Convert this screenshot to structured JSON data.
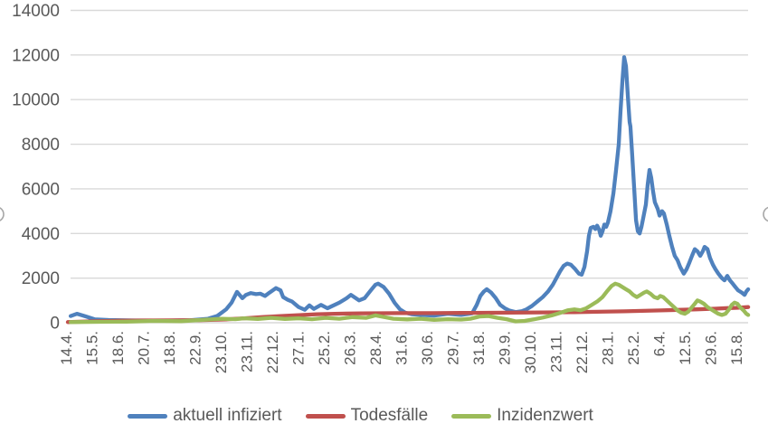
{
  "chart_data": {
    "type": "line",
    "title": "",
    "grid": true,
    "legend_position": "bottom",
    "y_axis": {
      "range": [
        0,
        14000
      ],
      "ticks": [
        0,
        2000,
        4000,
        6000,
        8000,
        10000,
        12000,
        14000
      ]
    },
    "x_axis": {
      "tick_labels": [
        "14.4.",
        "15.5.",
        "18.6.",
        "20.7.",
        "18.8.",
        "22.9.",
        "23.10.",
        "23.11.",
        "22.12.",
        "27.1.",
        "25.2.",
        "26.3.",
        "28.4.",
        "31.6.",
        "30.6.",
        "29.7.",
        "31.8.",
        "29.9.",
        "30.10.",
        "23.11.",
        "22.12.",
        "28.1.",
        "25.2.",
        "6.4.",
        "12.5.",
        "29.6.",
        "15.8."
      ]
    },
    "legend": [
      {
        "label": "aktuell infiziert",
        "color": "#4F81BD"
      },
      {
        "label": "Todesfälle",
        "color": "#C0504D"
      },
      {
        "label": "Inzidenzwert",
        "color": "#9BBB59"
      }
    ],
    "series": [
      {
        "name": "aktuell infiziert",
        "color": "#4F81BD",
        "points": [
          [
            0.18,
            300
          ],
          [
            0.42,
            400
          ],
          [
            0.77,
            280
          ],
          [
            1.12,
            150
          ],
          [
            1.65,
            120
          ],
          [
            2.7,
            100
          ],
          [
            3.75,
            90
          ],
          [
            4.81,
            110
          ],
          [
            5.51,
            180
          ],
          [
            5.86,
            300
          ],
          [
            6.21,
            600
          ],
          [
            6.42,
            900
          ],
          [
            6.63,
            1380
          ],
          [
            6.84,
            1100
          ],
          [
            6.98,
            1250
          ],
          [
            7.16,
            1330
          ],
          [
            7.37,
            1280
          ],
          [
            7.54,
            1300
          ],
          [
            7.72,
            1200
          ],
          [
            7.89,
            1350
          ],
          [
            8.14,
            1550
          ],
          [
            8.32,
            1450
          ],
          [
            8.42,
            1150
          ],
          [
            8.6,
            1030
          ],
          [
            8.77,
            950
          ],
          [
            9.02,
            700
          ],
          [
            9.26,
            580
          ],
          [
            9.44,
            780
          ],
          [
            9.61,
            620
          ],
          [
            9.89,
            800
          ],
          [
            10.14,
            650
          ],
          [
            10.6,
            900
          ],
          [
            10.88,
            1100
          ],
          [
            11.05,
            1250
          ],
          [
            11.37,
            1000
          ],
          [
            11.58,
            1100
          ],
          [
            11.82,
            1450
          ],
          [
            12.0,
            1700
          ],
          [
            12.11,
            1750
          ],
          [
            12.32,
            1600
          ],
          [
            12.53,
            1300
          ],
          [
            12.74,
            900
          ],
          [
            12.95,
            600
          ],
          [
            13.16,
            450
          ],
          [
            13.4,
            380
          ],
          [
            13.75,
            350
          ],
          [
            14.28,
            320
          ],
          [
            14.81,
            400
          ],
          [
            15.33,
            350
          ],
          [
            15.75,
            420
          ],
          [
            15.93,
            800
          ],
          [
            16.07,
            1200
          ],
          [
            16.21,
            1400
          ],
          [
            16.32,
            1500
          ],
          [
            16.49,
            1350
          ],
          [
            16.67,
            1100
          ],
          [
            16.84,
            800
          ],
          [
            17.02,
            650
          ],
          [
            17.19,
            550
          ],
          [
            17.44,
            480
          ],
          [
            17.68,
            520
          ],
          [
            17.86,
            600
          ],
          [
            18.07,
            750
          ],
          [
            18.28,
            950
          ],
          [
            18.49,
            1150
          ],
          [
            18.7,
            1400
          ],
          [
            18.88,
            1700
          ],
          [
            19.02,
            2000
          ],
          [
            19.16,
            2300
          ],
          [
            19.3,
            2550
          ],
          [
            19.44,
            2650
          ],
          [
            19.58,
            2600
          ],
          [
            19.75,
            2400
          ],
          [
            19.89,
            2200
          ],
          [
            20.0,
            2150
          ],
          [
            20.11,
            2500
          ],
          [
            20.21,
            3200
          ],
          [
            20.28,
            3900
          ],
          [
            20.35,
            4250
          ],
          [
            20.46,
            4300
          ],
          [
            20.53,
            4200
          ],
          [
            20.6,
            4350
          ],
          [
            20.67,
            4200
          ],
          [
            20.74,
            3900
          ],
          [
            20.81,
            4100
          ],
          [
            20.88,
            4400
          ],
          [
            20.95,
            4300
          ],
          [
            21.02,
            4500
          ],
          [
            21.12,
            5000
          ],
          [
            21.23,
            5800
          ],
          [
            21.33,
            6800
          ],
          [
            21.44,
            8000
          ],
          [
            21.51,
            9500
          ],
          [
            21.58,
            10800
          ],
          [
            21.65,
            11900
          ],
          [
            21.72,
            11500
          ],
          [
            21.79,
            10200
          ],
          [
            21.86,
            9000
          ],
          [
            21.89,
            8800
          ],
          [
            21.96,
            7500
          ],
          [
            22.04,
            6000
          ],
          [
            22.11,
            4600
          ],
          [
            22.18,
            4100
          ],
          [
            22.25,
            4000
          ],
          [
            22.32,
            4300
          ],
          [
            22.39,
            4700
          ],
          [
            22.49,
            5300
          ],
          [
            22.56,
            6200
          ],
          [
            22.63,
            6850
          ],
          [
            22.7,
            6500
          ],
          [
            22.77,
            5900
          ],
          [
            22.84,
            5400
          ],
          [
            22.95,
            5100
          ],
          [
            23.02,
            4800
          ],
          [
            23.12,
            5000
          ],
          [
            23.19,
            4900
          ],
          [
            23.3,
            4400
          ],
          [
            23.4,
            3900
          ],
          [
            23.51,
            3400
          ],
          [
            23.61,
            3000
          ],
          [
            23.72,
            2800
          ],
          [
            23.82,
            2500
          ],
          [
            23.96,
            2200
          ],
          [
            24.07,
            2400
          ],
          [
            24.18,
            2700
          ],
          [
            24.28,
            3000
          ],
          [
            24.39,
            3300
          ],
          [
            24.49,
            3200
          ],
          [
            24.6,
            3000
          ],
          [
            24.7,
            3200
          ],
          [
            24.77,
            3400
          ],
          [
            24.88,
            3300
          ],
          [
            24.98,
            2900
          ],
          [
            25.09,
            2600
          ],
          [
            25.19,
            2400
          ],
          [
            25.3,
            2200
          ],
          [
            25.44,
            2000
          ],
          [
            25.54,
            1900
          ],
          [
            25.65,
            2100
          ],
          [
            25.75,
            1900
          ],
          [
            25.86,
            1750
          ],
          [
            25.96,
            1600
          ],
          [
            26.07,
            1450
          ],
          [
            26.21,
            1350
          ],
          [
            26.32,
            1250
          ],
          [
            26.39,
            1400
          ],
          [
            26.46,
            1500
          ]
        ]
      },
      {
        "name": "Todesfälle",
        "color": "#C0504D",
        "points": [
          [
            0.07,
            30
          ],
          [
            0.95,
            60
          ],
          [
            2.0,
            90
          ],
          [
            3.05,
            100
          ],
          [
            4.11,
            105
          ],
          [
            5.16,
            115
          ],
          [
            6.21,
            150
          ],
          [
            6.91,
            200
          ],
          [
            7.61,
            250
          ],
          [
            8.32,
            300
          ],
          [
            9.02,
            340
          ],
          [
            9.72,
            380
          ],
          [
            10.42,
            400
          ],
          [
            11.47,
            420
          ],
          [
            12.88,
            430
          ],
          [
            14.28,
            430
          ],
          [
            15.68,
            440
          ],
          [
            17.09,
            450
          ],
          [
            18.49,
            460
          ],
          [
            19.54,
            470
          ],
          [
            20.6,
            490
          ],
          [
            21.65,
            510
          ],
          [
            22.35,
            530
          ],
          [
            23.05,
            550
          ],
          [
            23.75,
            575
          ],
          [
            24.46,
            600
          ],
          [
            25.16,
            630
          ],
          [
            25.68,
            655
          ],
          [
            26.04,
            670
          ],
          [
            26.46,
            700
          ]
        ]
      },
      {
        "name": "Inzidenzwert",
        "color": "#9BBB59",
        "points": [
          [
            0.18,
            30
          ],
          [
            1.3,
            40
          ],
          [
            2.35,
            50
          ],
          [
            3.4,
            80
          ],
          [
            4.46,
            70
          ],
          [
            5.51,
            140
          ],
          [
            6.04,
            180
          ],
          [
            6.56,
            160
          ],
          [
            6.91,
            200
          ],
          [
            7.44,
            170
          ],
          [
            7.96,
            220
          ],
          [
            8.49,
            170
          ],
          [
            9.02,
            200
          ],
          [
            9.54,
            160
          ],
          [
            10.07,
            220
          ],
          [
            10.6,
            180
          ],
          [
            11.12,
            250
          ],
          [
            11.65,
            220
          ],
          [
            12.0,
            330
          ],
          [
            12.35,
            250
          ],
          [
            12.7,
            180
          ],
          [
            13.23,
            150
          ],
          [
            13.75,
            180
          ],
          [
            14.28,
            130
          ],
          [
            14.81,
            160
          ],
          [
            15.33,
            140
          ],
          [
            15.68,
            180
          ],
          [
            16.04,
            280
          ],
          [
            16.39,
            300
          ],
          [
            16.74,
            220
          ],
          [
            17.09,
            160
          ],
          [
            17.44,
            60
          ],
          [
            17.79,
            80
          ],
          [
            18.14,
            150
          ],
          [
            18.49,
            230
          ],
          [
            18.84,
            330
          ],
          [
            19.19,
            450
          ],
          [
            19.47,
            560
          ],
          [
            19.72,
            600
          ],
          [
            19.96,
            560
          ],
          [
            20.18,
            650
          ],
          [
            20.39,
            800
          ],
          [
            20.6,
            950
          ],
          [
            20.81,
            1150
          ],
          [
            20.98,
            1400
          ],
          [
            21.16,
            1650
          ],
          [
            21.3,
            1750
          ],
          [
            21.44,
            1700
          ],
          [
            21.58,
            1600
          ],
          [
            21.72,
            1500
          ],
          [
            21.86,
            1400
          ],
          [
            22.0,
            1250
          ],
          [
            22.14,
            1150
          ],
          [
            22.28,
            1250
          ],
          [
            22.42,
            1350
          ],
          [
            22.53,
            1400
          ],
          [
            22.67,
            1300
          ],
          [
            22.81,
            1150
          ],
          [
            22.95,
            1100
          ],
          [
            23.05,
            1200
          ],
          [
            23.16,
            1150
          ],
          [
            23.3,
            1000
          ],
          [
            23.44,
            850
          ],
          [
            23.58,
            700
          ],
          [
            23.72,
            550
          ],
          [
            23.86,
            450
          ],
          [
            24.0,
            400
          ],
          [
            24.14,
            500
          ],
          [
            24.28,
            700
          ],
          [
            24.39,
            850
          ],
          [
            24.49,
            1000
          ],
          [
            24.6,
            950
          ],
          [
            24.74,
            850
          ],
          [
            24.88,
            700
          ],
          [
            25.02,
            600
          ],
          [
            25.16,
            500
          ],
          [
            25.3,
            400
          ],
          [
            25.44,
            350
          ],
          [
            25.58,
            400
          ],
          [
            25.72,
            600
          ],
          [
            25.82,
            800
          ],
          [
            25.93,
            900
          ],
          [
            26.04,
            850
          ],
          [
            26.14,
            700
          ],
          [
            26.28,
            550
          ],
          [
            26.39,
            400
          ],
          [
            26.46,
            350
          ]
        ]
      }
    ]
  },
  "colors": {
    "background": "#FFFFFF",
    "gridline": "#D9D9D9",
    "axis_text": "#595959",
    "legend_text": "#595959",
    "selection_handle": "#A6A6A6"
  }
}
